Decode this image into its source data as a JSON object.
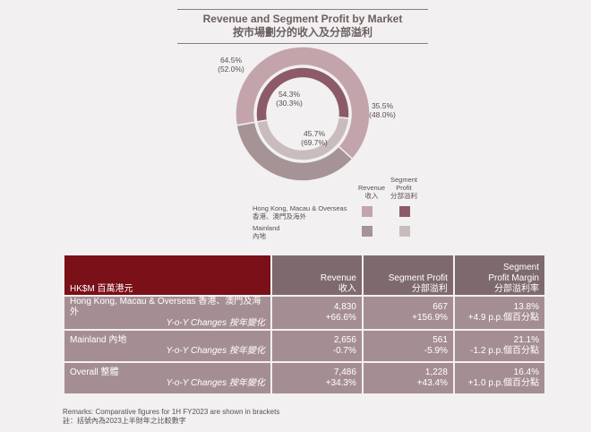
{
  "title": {
    "en": "Revenue and Segment Profit by Market",
    "zh": "按市場劃分的收入及分部溢利"
  },
  "colors": {
    "revenue_hk": "#c4a4ab",
    "revenue_mainland": "#a59396",
    "profit_hk": "#8d5a68",
    "profit_mainland": "#c8bcbd",
    "header_dark": "#7a1018",
    "header_mid": "#7e6a6e",
    "row_bg": "#a58e93"
  },
  "chart_data": {
    "type": "pie",
    "title": "Revenue and Segment Profit by Market",
    "rings": [
      {
        "name": "Revenue",
        "categories": [
          "Hong Kong, Macau & Overseas",
          "Mainland"
        ],
        "values": [
          64.5,
          35.5
        ],
        "labels": [
          "64.5%",
          "35.5%"
        ],
        "comparative": [
          "(52.0%)",
          "(48.0%)"
        ]
      },
      {
        "name": "Segment Profit",
        "categories": [
          "Hong Kong, Macau & Overseas",
          "Mainland"
        ],
        "values": [
          54.3,
          45.7
        ],
        "labels": [
          "54.3%",
          "45.7%"
        ],
        "comparative": [
          "(30.3%)",
          "(69.7%)"
        ]
      }
    ]
  },
  "legend": {
    "col_revenue": [
      "Revenue",
      "收入"
    ],
    "col_profit": [
      "Segment",
      "Profit",
      "分部溢利"
    ],
    "row_hk": [
      "Hong Kong, Macau & Overseas",
      "香港、澳門及海外"
    ],
    "row_mainland": [
      "Mainland",
      "內地"
    ]
  },
  "table": {
    "header": {
      "label": "HK$M 百萬港元",
      "revenue": [
        "Revenue",
        "收入"
      ],
      "profit": [
        "Segment Profit",
        "分部溢利"
      ],
      "margin": [
        "Segment",
        "Profit Margin",
        "分部溢利率"
      ]
    },
    "rows": [
      {
        "label": "Hong Kong, Macau & Overseas 香港、澳門及海外",
        "sublabel": "Y-o-Y Changes 按年變化",
        "revenue": "4,830",
        "revenue_change": "+66.6%",
        "profit": "667",
        "profit_change": "+156.9%",
        "margin": "13.8%",
        "margin_change": "+4.9 p.p.個百分點"
      },
      {
        "label": "Mainland 內地",
        "sublabel": "Y-o-Y Changes 按年變化",
        "revenue": "2,656",
        "revenue_change": "-0.7%",
        "profit": "561",
        "profit_change": "-5.9%",
        "margin": "21.1%",
        "margin_change": "-1.2 p.p.個百分點"
      },
      {
        "label": "Overall 整體",
        "sublabel": "Y-o-Y Changes 按年變化",
        "revenue": "7,486",
        "revenue_change": "+34.3%",
        "profit": "1,228",
        "profit_change": "+43.4%",
        "margin": "16.4%",
        "margin_change": "+1.0 p.p.個百分點"
      }
    ]
  },
  "remarks": {
    "en": "Remarks: Comparative figures for 1H FY2023 are shown in brackets",
    "zh": "註：括號內為2023上半財年之比較數字"
  }
}
